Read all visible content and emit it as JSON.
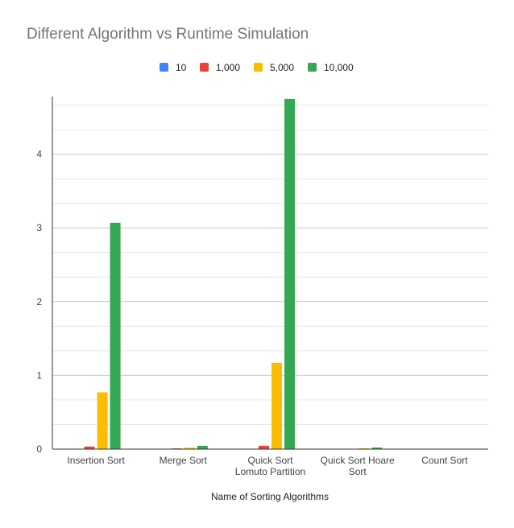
{
  "chart_data": {
    "type": "bar",
    "title": "Different Algorithm vs Runtime Simulation",
    "xlabel": "Name of Sorting Algorithms",
    "ylabel": "",
    "categories": [
      [
        "Insertion Sort"
      ],
      [
        "Merge Sort"
      ],
      [
        "Quick Sort",
        "Lomuto Partition"
      ],
      [
        "Quick Sort Hoare",
        "Sort"
      ],
      [
        "Count Sort"
      ]
    ],
    "series": [
      {
        "name": "10",
        "color": "#4285F4",
        "values": [
          0.0,
          0.0,
          0.0,
          0.0,
          0.0
        ]
      },
      {
        "name": "1,000",
        "color": "#EA4335",
        "values": [
          0.035,
          0.01,
          0.045,
          0.002,
          0.0
        ]
      },
      {
        "name": "5,000",
        "color": "#FBBC04",
        "values": [
          0.77,
          0.02,
          1.17,
          0.012,
          0.002
        ]
      },
      {
        "name": "10,000",
        "color": "#34A853",
        "values": [
          3.07,
          0.045,
          4.75,
          0.022,
          0.004
        ]
      }
    ],
    "yticks": [
      "0",
      "1",
      "2",
      "3",
      "4"
    ],
    "ylim": [
      0,
      4.8
    ],
    "legend": "top",
    "grid": true
  }
}
